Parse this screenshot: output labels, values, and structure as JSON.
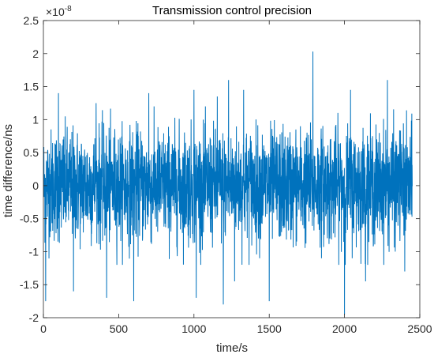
{
  "chart_data": {
    "type": "line",
    "title": "Transmission control precision",
    "xlabel": "time/s",
    "ylabel": "time difference/ns",
    "y_exponent_label": "×10",
    "y_exponent_power": "-8",
    "xlim": [
      0,
      2500
    ],
    "ylim": [
      -2,
      2.5
    ],
    "y_scale_factor": 1e-08,
    "x_ticks": [
      0,
      500,
      1000,
      1500,
      2000,
      2500
    ],
    "x_tick_labels": [
      "0",
      "500",
      "1000",
      "1500",
      "2000",
      "2500"
    ],
    "y_ticks": [
      -2,
      -1.5,
      -1,
      -0.5,
      0,
      0.5,
      1,
      1.5,
      2,
      2.5
    ],
    "y_tick_labels": [
      "-2",
      "-1.5",
      "-1",
      "-0.5",
      "0",
      "0.5",
      "1",
      "1.5",
      "2",
      "2.5"
    ],
    "grid": false,
    "legend": "none",
    "series": [
      {
        "color": "#0072BD",
        "x_start": 0,
        "x_end": 2450,
        "sample_count": 2451,
        "noise_std": 0.42,
        "envelope_typical": [
          -0.7,
          0.7
        ],
        "notable_points": [
          {
            "x": 15,
            "y": -1.75
          },
          {
            "x": 100,
            "y": 1.4
          },
          {
            "x": 200,
            "y": -1.6
          },
          {
            "x": 350,
            "y": 1.25
          },
          {
            "x": 420,
            "y": -1.7
          },
          {
            "x": 600,
            "y": -1.75
          },
          {
            "x": 700,
            "y": 1.4
          },
          {
            "x": 1000,
            "y": 1.45
          },
          {
            "x": 1015,
            "y": -1.7
          },
          {
            "x": 1155,
            "y": 1.35
          },
          {
            "x": 1195,
            "y": -1.8
          },
          {
            "x": 1230,
            "y": 1.6
          },
          {
            "x": 1270,
            "y": -1.45
          },
          {
            "x": 1330,
            "y": 1.45
          },
          {
            "x": 1500,
            "y": -1.75
          },
          {
            "x": 1790,
            "y": 2.03
          },
          {
            "x": 2000,
            "y": -1.95
          },
          {
            "x": 2040,
            "y": 1.45
          },
          {
            "x": 2140,
            "y": -1.45
          },
          {
            "x": 2285,
            "y": 1.6
          },
          {
            "x": 2400,
            "y": -1.3
          }
        ]
      }
    ]
  }
}
